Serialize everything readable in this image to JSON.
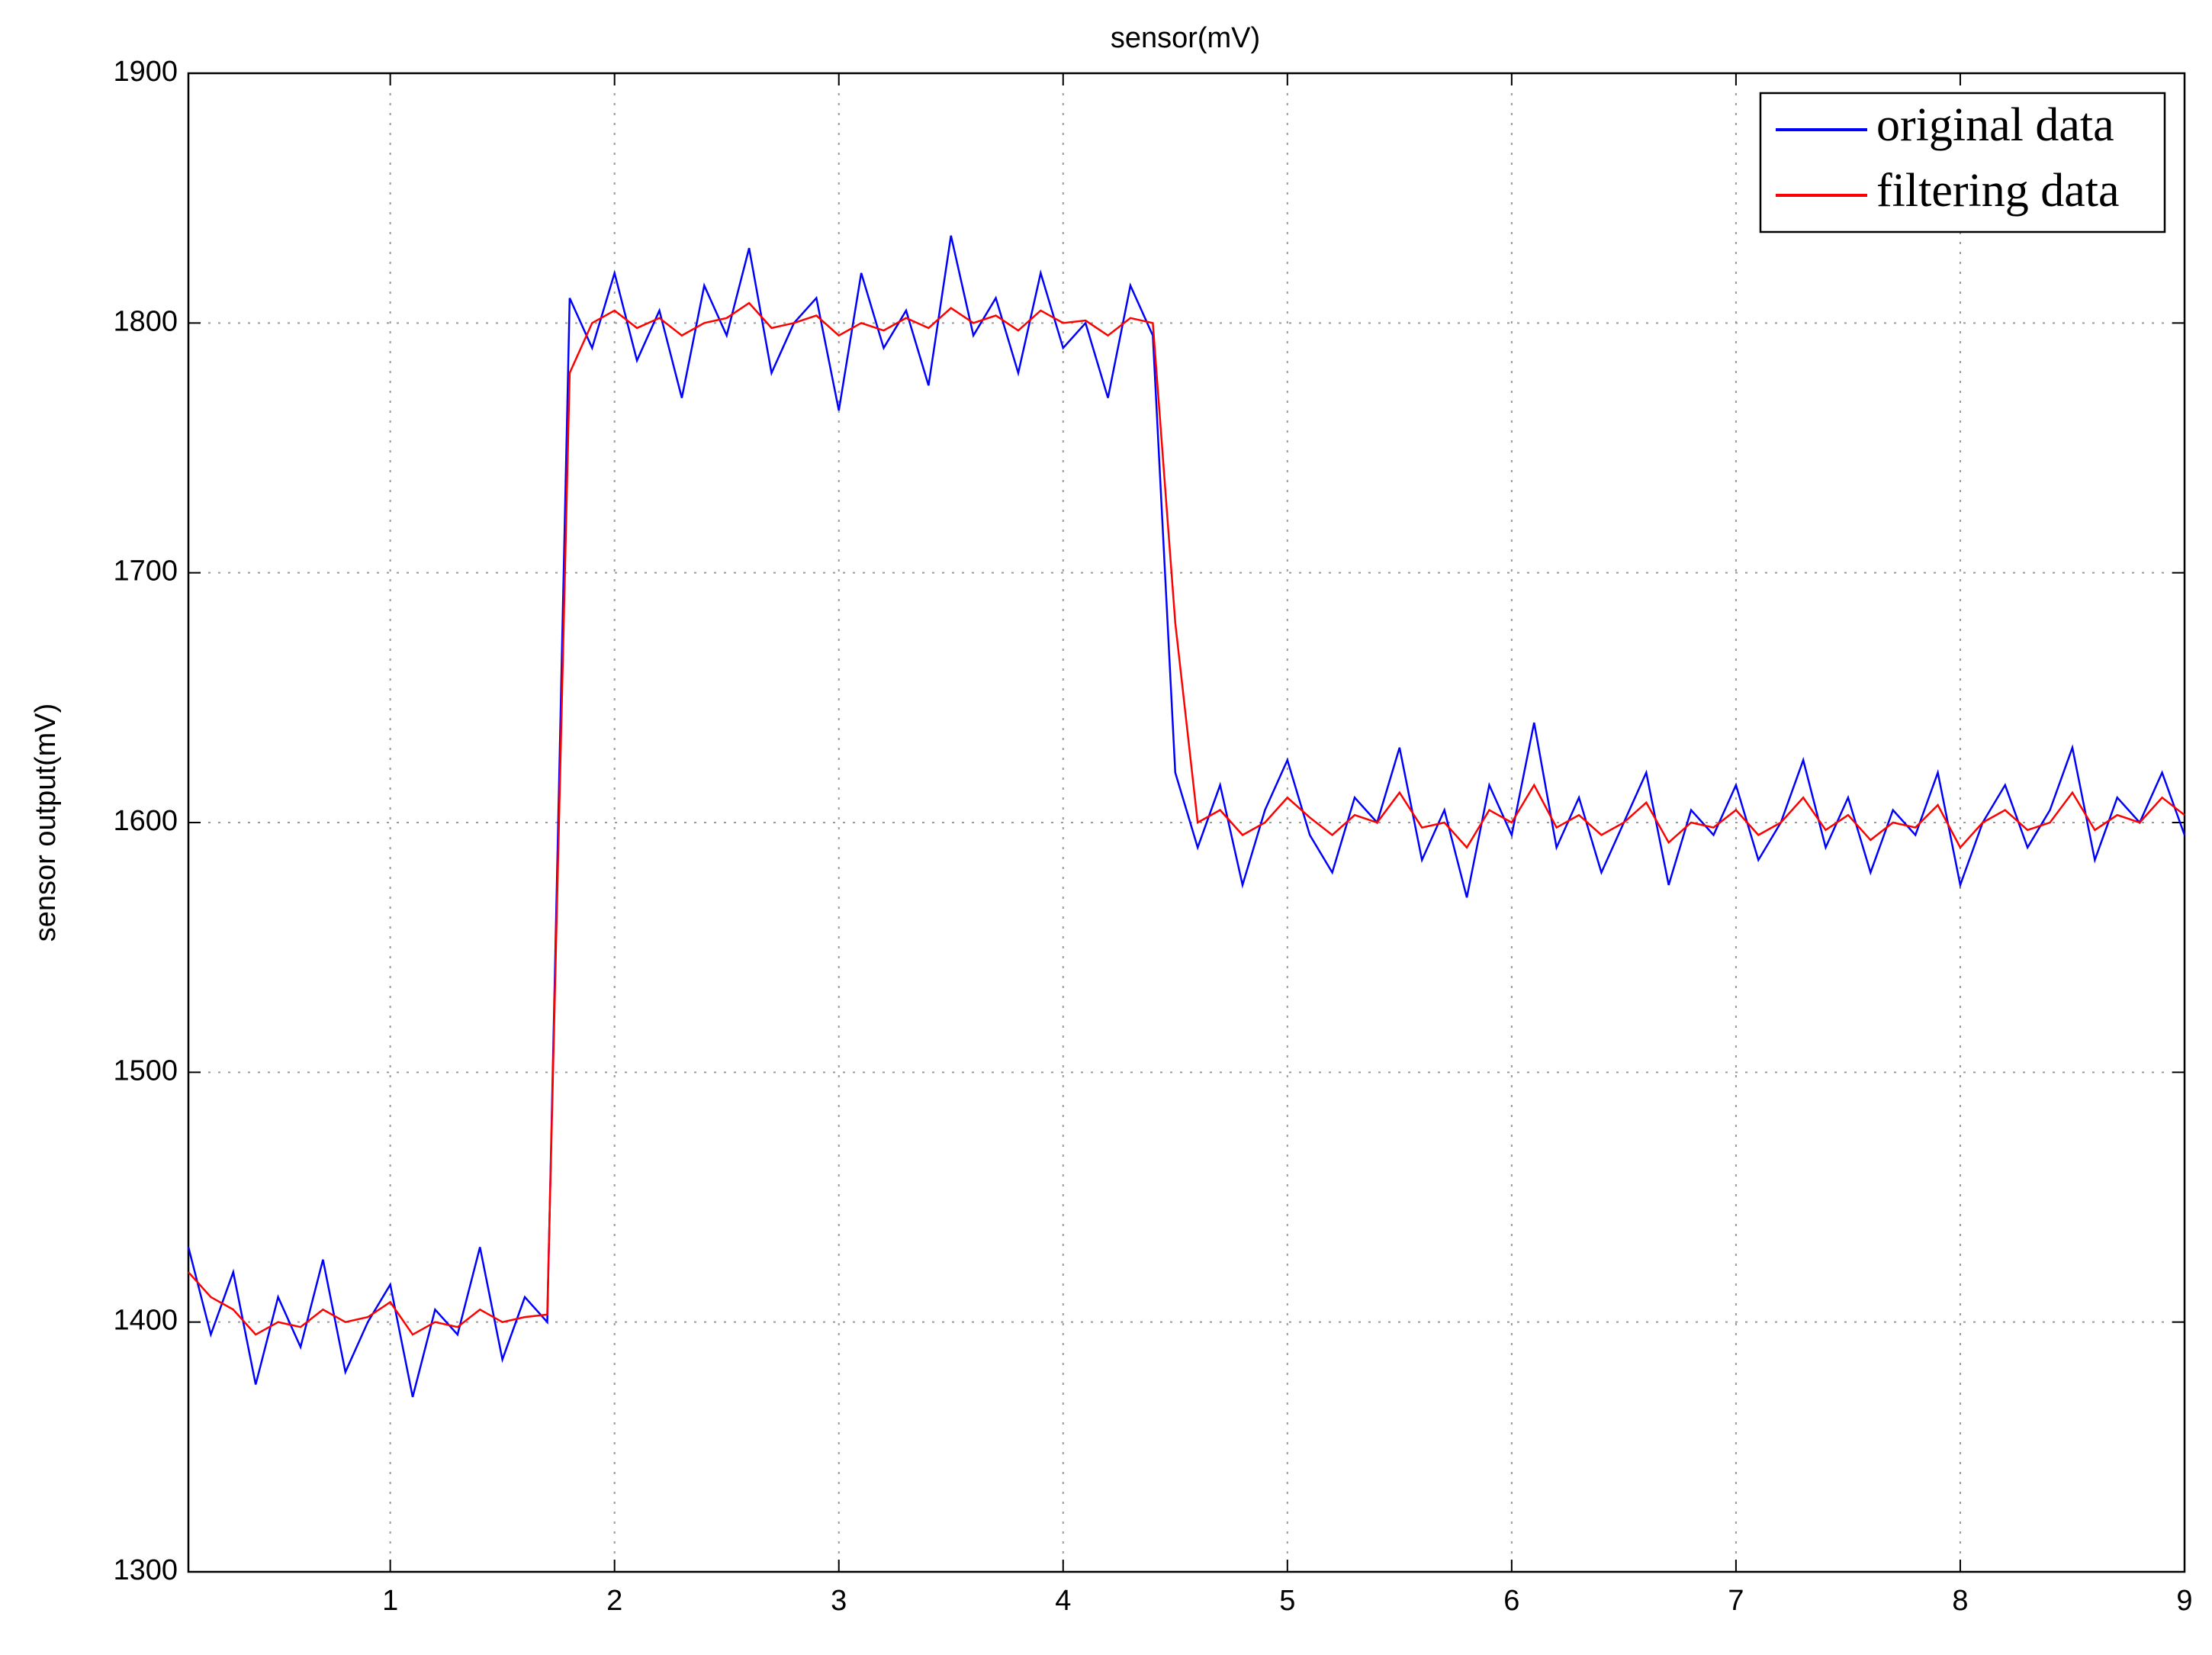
{
  "chart_data": {
    "type": "line",
    "title": "sensor(mV)",
    "y_label": "sensor output(mV)",
    "x": [
      0.1,
      0.2,
      0.3,
      0.4,
      0.5,
      0.6,
      0.7,
      0.8,
      0.9,
      1.0,
      1.1,
      1.2,
      1.3,
      1.4,
      1.5,
      1.6,
      1.7,
      1.8,
      1.9,
      2.0,
      2.1,
      2.2,
      2.3,
      2.4,
      2.5,
      2.6,
      2.7,
      2.8,
      2.9,
      3.0,
      3.1,
      3.2,
      3.3,
      3.4,
      3.5,
      3.6,
      3.7,
      3.8,
      3.9,
      4.0,
      4.1,
      4.2,
      4.3,
      4.4,
      4.5,
      4.6,
      4.7,
      4.8,
      4.9,
      5.0,
      5.1,
      5.2,
      5.3,
      5.4,
      5.5,
      5.6,
      5.7,
      5.8,
      5.9,
      6.0,
      6.1,
      6.2,
      6.3,
      6.4,
      6.5,
      6.6,
      6.7,
      6.8,
      6.9,
      7.0,
      7.1,
      7.2,
      7.3,
      7.4,
      7.5,
      7.6,
      7.7,
      7.8,
      7.9,
      8.0,
      8.1,
      8.2,
      8.3,
      8.4,
      8.5,
      8.6,
      8.7,
      8.8,
      8.9,
      9.0
    ],
    "series": [
      {
        "name": "original data",
        "color": "#0000ff",
        "values": [
          1430,
          1395,
          1420,
          1375,
          1410,
          1390,
          1425,
          1380,
          1400,
          1415,
          1370,
          1405,
          1395,
          1430,
          1385,
          1410,
          1400,
          1810,
          1790,
          1820,
          1785,
          1805,
          1770,
          1815,
          1795,
          1830,
          1780,
          1800,
          1810,
          1765,
          1820,
          1790,
          1805,
          1775,
          1835,
          1795,
          1810,
          1780,
          1820,
          1790,
          1800,
          1770,
          1815,
          1795,
          1620,
          1590,
          1615,
          1575,
          1605,
          1625,
          1595,
          1580,
          1610,
          1600,
          1630,
          1585,
          1605,
          1570,
          1615,
          1595,
          1640,
          1590,
          1610,
          1580,
          1600,
          1620,
          1575,
          1605,
          1595,
          1615,
          1585,
          1600,
          1625,
          1590,
          1610,
          1580,
          1605,
          1595,
          1620,
          1575,
          1600,
          1615,
          1590,
          1605,
          1630,
          1585,
          1610,
          1600,
          1620,
          1595
        ]
      },
      {
        "name": "filtering data",
        "color": "#ff0000",
        "values": [
          1420,
          1410,
          1405,
          1395,
          1400,
          1398,
          1405,
          1400,
          1402,
          1408,
          1395,
          1400,
          1398,
          1405,
          1400,
          1402,
          1403,
          1780,
          1800,
          1805,
          1798,
          1802,
          1795,
          1800,
          1802,
          1808,
          1798,
          1800,
          1803,
          1795,
          1800,
          1797,
          1802,
          1798,
          1806,
          1800,
          1803,
          1797,
          1805,
          1800,
          1801,
          1795,
          1802,
          1800,
          1680,
          1600,
          1605,
          1595,
          1600,
          1610,
          1602,
          1595,
          1603,
          1600,
          1612,
          1598,
          1600,
          1590,
          1605,
          1600,
          1615,
          1598,
          1603,
          1595,
          1600,
          1608,
          1592,
          1600,
          1598,
          1605,
          1595,
          1600,
          1610,
          1597,
          1603,
          1593,
          1600,
          1598,
          1607,
          1590,
          1600,
          1605,
          1597,
          1600,
          1612,
          1597,
          1603,
          1600,
          1610,
          1603
        ]
      }
    ],
    "xlim": [
      0.1,
      9
    ],
    "xticks": [
      1,
      2,
      3,
      4,
      5,
      6,
      7,
      8,
      9
    ],
    "ylim": [
      1300,
      1900
    ],
    "yticks": [
      1300,
      1400,
      1500,
      1600,
      1700,
      1800,
      1900
    ],
    "grid": true,
    "legend": "upper right"
  }
}
